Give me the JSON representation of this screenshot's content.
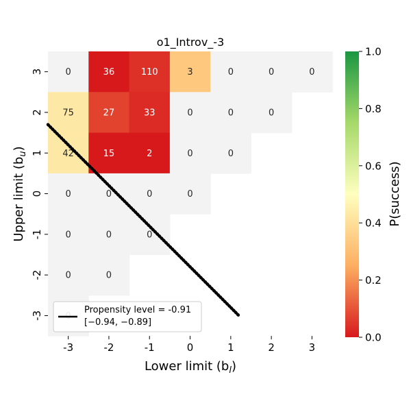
{
  "chart_data": {
    "type": "heatmap",
    "title": "o1_Introv_-3",
    "xlabel": "Lower limit (b",
    "xlabel_sub": "l",
    "xlabel_close": ")",
    "ylabel": "Upper limit (b",
    "ylabel_sub": "u",
    "ylabel_close": ")",
    "x_ticks": [
      "-3",
      "-2",
      "-1",
      "0",
      "1",
      "2",
      "3"
    ],
    "y_ticks": [
      "3",
      "2",
      "1",
      "0",
      "-1",
      "-2",
      "-3"
    ],
    "x_values": [
      -3,
      -2,
      -1,
      0,
      1,
      2,
      3
    ],
    "y_values": [
      3,
      2,
      1,
      0,
      -1,
      -2,
      -3
    ],
    "cells": [
      {
        "x": -3,
        "y": 3,
        "n": "0",
        "p": null
      },
      {
        "x": -2,
        "y": 3,
        "n": "36",
        "p": 0.0
      },
      {
        "x": -1,
        "y": 3,
        "n": "110",
        "p": 0.04
      },
      {
        "x": 0,
        "y": 3,
        "n": "3",
        "p": 0.33
      },
      {
        "x": 1,
        "y": 3,
        "n": "0",
        "p": null
      },
      {
        "x": 2,
        "y": 3,
        "n": "0",
        "p": null
      },
      {
        "x": 3,
        "y": 3,
        "n": "0",
        "p": null
      },
      {
        "x": -3,
        "y": 2,
        "n": "75",
        "p": 0.43
      },
      {
        "x": -2,
        "y": 2,
        "n": "27",
        "p": 0.07
      },
      {
        "x": -1,
        "y": 2,
        "n": "33",
        "p": 0.03
      },
      {
        "x": 0,
        "y": 2,
        "n": "0",
        "p": null
      },
      {
        "x": 1,
        "y": 2,
        "n": "0",
        "p": null
      },
      {
        "x": 2,
        "y": 2,
        "n": "0",
        "p": null
      },
      {
        "x": -3,
        "y": 1,
        "n": "42",
        "p": 0.43
      },
      {
        "x": -2,
        "y": 1,
        "n": "15",
        "p": 0.0
      },
      {
        "x": -1,
        "y": 1,
        "n": "2",
        "p": 0.0
      },
      {
        "x": 0,
        "y": 1,
        "n": "0",
        "p": null
      },
      {
        "x": 1,
        "y": 1,
        "n": "0",
        "p": null
      },
      {
        "x": -3,
        "y": 0,
        "n": "0",
        "p": null
      },
      {
        "x": -2,
        "y": 0,
        "n": "0",
        "p": null
      },
      {
        "x": -1,
        "y": 0,
        "n": "0",
        "p": null
      },
      {
        "x": 0,
        "y": 0,
        "n": "0",
        "p": null
      },
      {
        "x": -3,
        "y": -1,
        "n": "0",
        "p": null
      },
      {
        "x": -2,
        "y": -1,
        "n": "0",
        "p": null
      },
      {
        "x": -1,
        "y": -1,
        "n": "0",
        "p": null
      },
      {
        "x": -3,
        "y": -2,
        "n": "0",
        "p": null
      },
      {
        "x": -2,
        "y": -2,
        "n": "0",
        "p": null
      },
      {
        "x": -3,
        "y": -3,
        "n": "0",
        "p": null
      }
    ],
    "line": {
      "label": "Propensity level = -0.91",
      "ci_label": "[−0.94, −0.89]",
      "x": [
        -3.5,
        1.2
      ],
      "y": [
        1.7,
        -3.0
      ]
    },
    "colorbar": {
      "label": "P(success)",
      "range": [
        0.0,
        1.0
      ],
      "ticks": [
        "0.0",
        "0.2",
        "0.4",
        "0.6",
        "0.8",
        "1.0"
      ],
      "colormap": [
        "#d7191c",
        "#fdae61",
        "#ffffbf",
        "#a6d96a",
        "#1a9641"
      ]
    },
    "empty_cell_color": "#f3f3f3",
    "legend_location": "lower-left"
  }
}
